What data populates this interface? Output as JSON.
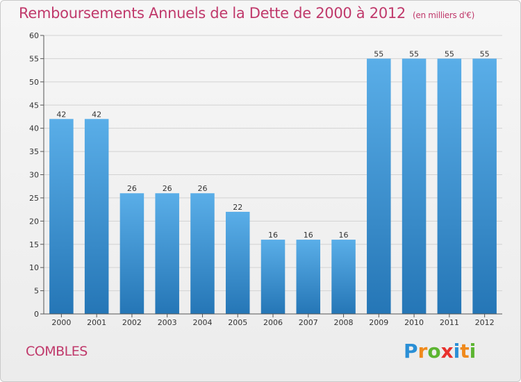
{
  "header": {
    "title": "Remboursements Annuels de la Dette de 2000 à 2012",
    "unit": "(en milliers d'€)"
  },
  "footer": {
    "commune": "COMBLES",
    "logo_letters": [
      {
        "char": "P",
        "color": "#2a8fd6"
      },
      {
        "char": "r",
        "color": "#f08a1c"
      },
      {
        "char": "o",
        "color": "#5cb531"
      },
      {
        "char": "x",
        "color": "#e8312d"
      },
      {
        "char": "i",
        "color": "#2a8fd6"
      },
      {
        "char": "t",
        "color": "#f08a1c"
      },
      {
        "char": "i",
        "color": "#5cb531"
      }
    ]
  },
  "chart_data": {
    "type": "bar",
    "categories": [
      "2000",
      "2001",
      "2002",
      "2003",
      "2004",
      "2005",
      "2006",
      "2007",
      "2008",
      "2009",
      "2010",
      "2011",
      "2012"
    ],
    "values": [
      42,
      42,
      26,
      26,
      26,
      22,
      16,
      16,
      16,
      55,
      55,
      55,
      55
    ],
    "ylim": [
      0,
      60
    ],
    "yticks": [
      0,
      5,
      10,
      15,
      20,
      25,
      30,
      35,
      40,
      45,
      50,
      55,
      60
    ],
    "grid": true,
    "bar_color_top": "#5aaee8",
    "bar_color_bottom": "#2576b6"
  }
}
